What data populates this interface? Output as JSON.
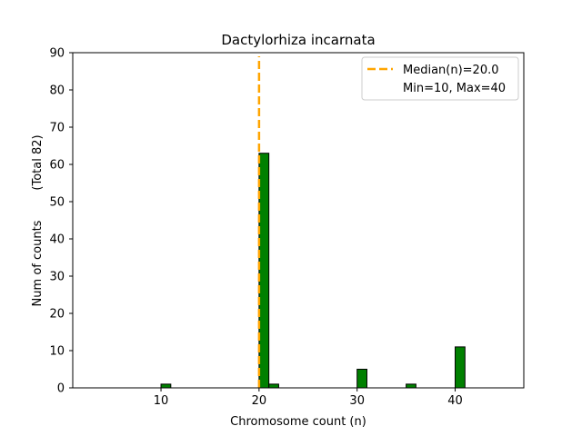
{
  "chart_data": {
    "type": "bar",
    "title": "Dactylorhiza incarnata",
    "xlabel": "Chromosome count (n)",
    "ylabel": "Num of counts",
    "ylabel_note": "(Total 82)",
    "xlim": [
      1,
      47
    ],
    "ylim": [
      0,
      90
    ],
    "xticks": [
      10,
      20,
      30,
      40
    ],
    "yticks": [
      0,
      10,
      20,
      30,
      40,
      50,
      60,
      70,
      80,
      90
    ],
    "bin_width": 1,
    "bars": [
      {
        "x": 10,
        "value": 1
      },
      {
        "x": 20,
        "value": 63
      },
      {
        "x": 21,
        "value": 1
      },
      {
        "x": 30,
        "value": 5
      },
      {
        "x": 35,
        "value": 1
      },
      {
        "x": 40,
        "value": 11
      }
    ],
    "zero_span": [
      2,
      44
    ],
    "median": 20.0,
    "legend": {
      "position": "top-right",
      "entries": [
        {
          "label": "Median(n)=20.0",
          "style": "dashed-line"
        },
        {
          "label": "Min=10, Max=40",
          "style": "none"
        }
      ]
    },
    "colors": {
      "bar": "#008000",
      "bar_edge": "#000000",
      "median": "#FFA500"
    },
    "grid": false
  }
}
